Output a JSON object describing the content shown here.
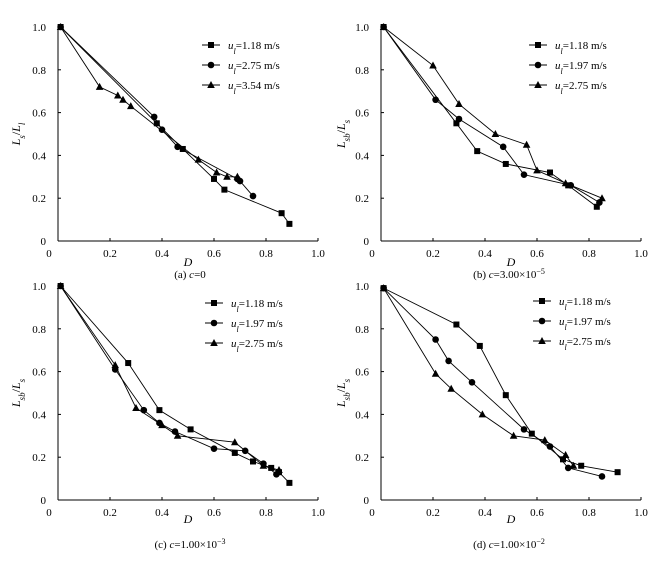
{
  "chart_data": [
    {
      "type": "line",
      "caption": "(a) c=0",
      "xlabel": "D",
      "ylabel": "L_s/L_l",
      "xlim": [
        0,
        1.0
      ],
      "ylim": [
        0,
        1.0
      ],
      "xticks": [
        "0",
        "0.2",
        "0.4",
        "0.6",
        "0.8",
        "1.0"
      ],
      "yticks": [
        "0",
        "0.2",
        "0.4",
        "0.6",
        "0.8",
        "1.0"
      ],
      "legend": "top-right",
      "series": [
        {
          "name": "u_l=1.18 m/s",
          "marker": "square",
          "x": [
            0.01,
            0.38,
            0.48,
            0.6,
            0.64,
            0.86,
            0.89
          ],
          "y": [
            1.0,
            0.55,
            0.43,
            0.29,
            0.24,
            0.13,
            0.08
          ]
        },
        {
          "name": "u_l=2.75 m/s",
          "marker": "circle",
          "x": [
            0.01,
            0.37,
            0.4,
            0.46,
            0.69,
            0.7,
            0.75
          ],
          "y": [
            1.0,
            0.58,
            0.52,
            0.44,
            0.29,
            0.28,
            0.21
          ]
        },
        {
          "name": "u_l=3.54 m/s",
          "marker": "triangle",
          "x": [
            0.01,
            0.16,
            0.23,
            0.25,
            0.28,
            0.54,
            0.61,
            0.65,
            0.69
          ],
          "y": [
            1.0,
            0.72,
            0.68,
            0.66,
            0.63,
            0.38,
            0.32,
            0.3,
            0.3
          ]
        }
      ]
    },
    {
      "type": "line",
      "caption": "(b) c=3.00×10−5",
      "xlabel": "D",
      "ylabel": "L_sb/L_s",
      "xlim": [
        0,
        1.0
      ],
      "ylim": [
        0,
        1.0
      ],
      "xticks": [
        "0",
        "0.2",
        "0.4",
        "0.6",
        "0.8",
        "1.0"
      ],
      "yticks": [
        "0",
        "0.2",
        "0.4",
        "0.6",
        "0.8",
        "1.0"
      ],
      "legend": "top-right",
      "series": [
        {
          "name": "u_l=1.18 m/s",
          "marker": "square",
          "x": [
            0.01,
            0.29,
            0.37,
            0.48,
            0.65,
            0.72,
            0.83
          ],
          "y": [
            1.0,
            0.55,
            0.42,
            0.36,
            0.32,
            0.26,
            0.16
          ]
        },
        {
          "name": "u_l=1.97 m/s",
          "marker": "circle",
          "x": [
            0.01,
            0.21,
            0.3,
            0.47,
            0.55,
            0.73,
            0.84
          ],
          "y": [
            1.0,
            0.66,
            0.57,
            0.44,
            0.31,
            0.26,
            0.18
          ]
        },
        {
          "name": "u_l=2.75 m/s",
          "marker": "triangle",
          "x": [
            0.01,
            0.2,
            0.3,
            0.44,
            0.56,
            0.6,
            0.71,
            0.85
          ],
          "y": [
            1.0,
            0.82,
            0.64,
            0.5,
            0.45,
            0.33,
            0.27,
            0.2
          ]
        }
      ]
    },
    {
      "type": "line",
      "caption": "(c) c=1.00×10−3",
      "xlabel": "D",
      "ylabel": "L_sb/L_s",
      "xlim": [
        0,
        1.0
      ],
      "ylim": [
        0,
        1.0
      ],
      "xticks": [
        "0",
        "0.2",
        "0.4",
        "0.6",
        "0.8",
        "1.0"
      ],
      "yticks": [
        "0",
        "0.2",
        "0.4",
        "0.6",
        "0.8",
        "1.0"
      ],
      "legend": "top-right",
      "series": [
        {
          "name": "u_l=1.18 m/s",
          "marker": "square",
          "x": [
            0.01,
            0.27,
            0.39,
            0.51,
            0.68,
            0.75,
            0.82,
            0.85,
            0.89
          ],
          "y": [
            1.0,
            0.64,
            0.42,
            0.33,
            0.22,
            0.18,
            0.15,
            0.13,
            0.08
          ]
        },
        {
          "name": "u_l=1.97 m/s",
          "marker": "circle",
          "x": [
            0.01,
            0.22,
            0.33,
            0.39,
            0.45,
            0.6,
            0.72,
            0.79,
            0.84
          ],
          "y": [
            1.0,
            0.61,
            0.42,
            0.36,
            0.32,
            0.24,
            0.23,
            0.17,
            0.12
          ]
        },
        {
          "name": "u_l=2.75 m/s",
          "marker": "triangle",
          "x": [
            0.01,
            0.22,
            0.3,
            0.4,
            0.46,
            0.68,
            0.79,
            0.85
          ],
          "y": [
            1.0,
            0.63,
            0.43,
            0.35,
            0.3,
            0.27,
            0.16,
            0.14
          ]
        }
      ]
    },
    {
      "type": "line",
      "caption": "(d) c=1.00×10−2",
      "xlabel": "D",
      "ylabel": "L_sb/L_s",
      "xlim": [
        0,
        1.0
      ],
      "ylim": [
        0,
        1.0
      ],
      "xticks": [
        "0",
        "0.2",
        "0.4",
        "0.6",
        "0.8",
        "1.0"
      ],
      "yticks": [
        "0",
        "0.2",
        "0.4",
        "0.6",
        "0.8",
        "1.0"
      ],
      "legend": "top-right",
      "series": [
        {
          "name": "u_l=1.18 m/s",
          "marker": "square",
          "x": [
            0.01,
            0.29,
            0.38,
            0.48,
            0.58,
            0.7,
            0.77,
            0.91
          ],
          "y": [
            0.99,
            0.82,
            0.72,
            0.49,
            0.31,
            0.19,
            0.16,
            0.13
          ]
        },
        {
          "name": "u_l=1.97 m/s",
          "marker": "circle",
          "x": [
            0.01,
            0.21,
            0.26,
            0.35,
            0.55,
            0.65,
            0.72,
            0.85
          ],
          "y": [
            0.99,
            0.75,
            0.65,
            0.55,
            0.33,
            0.25,
            0.15,
            0.11
          ]
        },
        {
          "name": "u_l=2.75 m/s",
          "marker": "triangle",
          "x": [
            0.01,
            0.21,
            0.27,
            0.39,
            0.51,
            0.63,
            0.71,
            0.74
          ],
          "y": [
            0.99,
            0.59,
            0.52,
            0.4,
            0.3,
            0.28,
            0.21,
            0.16
          ]
        }
      ]
    }
  ]
}
